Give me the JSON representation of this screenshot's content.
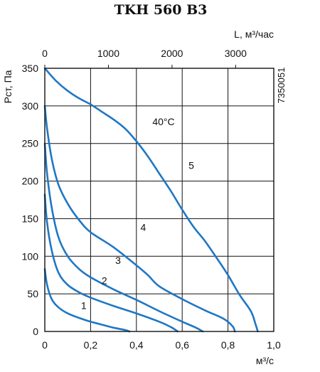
{
  "chart_data": {
    "type": "line",
    "title": "TKH 560 B3",
    "side_code": "7350051",
    "xlabel": "м³/с",
    "ylabel": "Рст, Па",
    "x2label": "L, м³/час",
    "xlim": [
      0,
      1.0
    ],
    "ylim": [
      0,
      350
    ],
    "x2lim": [
      0,
      3600
    ],
    "x_ticks": [
      0,
      0.2,
      0.4,
      0.6,
      0.8,
      1.0
    ],
    "x_tick_labels": [
      "0",
      "0,2",
      "0,4",
      "0,6",
      "0,8",
      "1,0"
    ],
    "y_ticks": [
      0,
      50,
      100,
      150,
      200,
      250,
      300,
      350
    ],
    "y_tick_labels": [
      "0",
      "50",
      "100",
      "150",
      "200",
      "250",
      "300",
      "350"
    ],
    "x2_ticks": [
      0,
      1000,
      2000,
      3000
    ],
    "x2_tick_labels": [
      "0",
      "1000",
      "2000",
      "3000"
    ],
    "grid": true,
    "annotation": "40°C",
    "series": [
      {
        "name": "1",
        "x": [
          0,
          0.01,
          0.03,
          0.06,
          0.1,
          0.15,
          0.2,
          0.25,
          0.3,
          0.35,
          0.37
        ],
        "y": [
          83,
          62,
          43,
          32,
          24,
          18,
          13,
          9,
          5,
          2,
          0
        ]
      },
      {
        "name": "2",
        "x": [
          0,
          0.01,
          0.03,
          0.06,
          0.1,
          0.15,
          0.2,
          0.3,
          0.4,
          0.5,
          0.55,
          0.58
        ],
        "y": [
          182,
          145,
          108,
          78,
          62,
          52,
          45,
          34,
          24,
          13,
          6,
          0
        ]
      },
      {
        "name": "3",
        "x": [
          0,
          0.01,
          0.03,
          0.06,
          0.1,
          0.15,
          0.2,
          0.3,
          0.4,
          0.5,
          0.6,
          0.66,
          0.69
        ],
        "y": [
          250,
          210,
          165,
          125,
          100,
          83,
          72,
          56,
          42,
          27,
          13,
          5,
          0
        ]
      },
      {
        "name": "4",
        "x": [
          0,
          0.01,
          0.03,
          0.06,
          0.1,
          0.15,
          0.2,
          0.3,
          0.4,
          0.45,
          0.5,
          0.6,
          0.7,
          0.78,
          0.82,
          0.83
        ],
        "y": [
          300,
          270,
          230,
          195,
          170,
          148,
          132,
          112,
          88,
          75,
          60,
          43,
          28,
          17,
          7,
          0
        ]
      },
      {
        "name": "5",
        "x": [
          0,
          0.05,
          0.1,
          0.15,
          0.2,
          0.25,
          0.3,
          0.35,
          0.4,
          0.45,
          0.5,
          0.55,
          0.6,
          0.65,
          0.7,
          0.75,
          0.8,
          0.85,
          0.9,
          0.92,
          0.93
        ],
        "y": [
          350,
          333,
          320,
          310,
          302,
          292,
          282,
          270,
          253,
          233,
          210,
          187,
          162,
          139,
          120,
          98,
          75,
          49,
          27,
          10,
          0
        ]
      }
    ],
    "curve_labels": [
      "1",
      "2",
      "3",
      "4",
      "5"
    ]
  }
}
